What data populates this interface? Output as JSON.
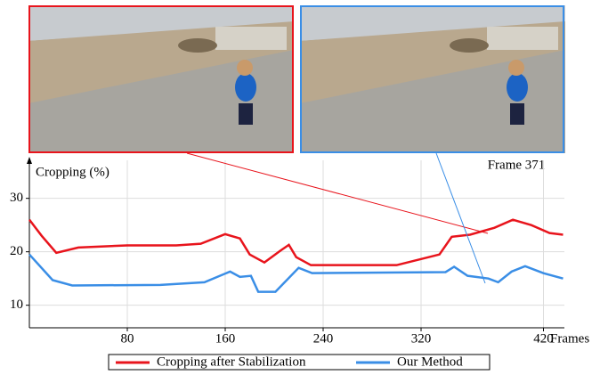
{
  "chart_data": {
    "type": "line",
    "y_label": "Cropping (%)",
    "x_label": "Frames",
    "annotation": "Frame 371",
    "xlim": [
      0,
      436
    ],
    "ylim": [
      7,
      38
    ],
    "xticks": [
      80,
      160,
      240,
      320,
      420
    ],
    "yticks": [
      10,
      20,
      30
    ],
    "grid": true,
    "series": [
      {
        "name": "Cropping after Stabilization",
        "color": "#e8141c",
        "x": [
          0,
          10,
          22,
          40,
          80,
          120,
          140,
          160,
          172,
          180,
          192,
          205,
          212,
          218,
          230,
          260,
          300,
          335,
          345,
          360,
          380,
          395,
          410,
          425,
          436
        ],
        "values": [
          26,
          23,
          19.8,
          20.8,
          21.2,
          21.2,
          21.5,
          23.3,
          22.5,
          19.5,
          18,
          20.2,
          21.3,
          19,
          17.5,
          17.5,
          17.5,
          19.5,
          22.8,
          23.2,
          24.5,
          26,
          25,
          23.5,
          23.2
        ]
      },
      {
        "name": "Our Method",
        "color": "#3a8ee6",
        "x": [
          0,
          19,
          35,
          107,
          143,
          164,
          172,
          181,
          187,
          201,
          220,
          231,
          340,
          347,
          358,
          375,
          383,
          394,
          405,
          420,
          436
        ],
        "values": [
          19.5,
          14.7,
          13.7,
          13.8,
          14.3,
          16.3,
          15.3,
          15.5,
          12.5,
          12.5,
          17,
          16,
          16.2,
          17.2,
          15.5,
          15,
          14.3,
          16.3,
          17.3,
          16,
          15
        ]
      }
    ]
  }
}
